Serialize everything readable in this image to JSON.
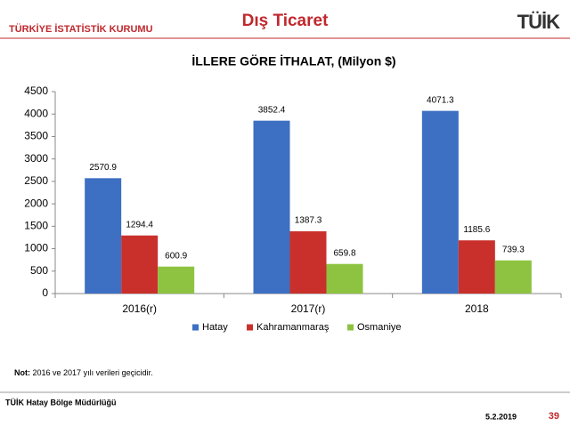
{
  "header": {
    "org": "TÜRKİYE İSTATİSTİK KURUMU",
    "section": "Dış Ticaret",
    "logo": "TÜİK"
  },
  "chart_data": {
    "type": "bar",
    "title": "İLLERE GÖRE İTHALAT, (Milyon $)",
    "categories": [
      "2016(r)",
      "2017(r)",
      "2018"
    ],
    "series": [
      {
        "name": "Hatay",
        "color": "#3d6fc2",
        "values": [
          2570.9,
          3852.4,
          4071.3
        ]
      },
      {
        "name": "Kahramanmaraş",
        "color": "#c9302c",
        "values": [
          1294.4,
          1387.3,
          1185.6
        ]
      },
      {
        "name": "Osmaniye",
        "color": "#8dc340",
        "values": [
          600.9,
          659.8,
          739.3
        ]
      }
    ],
    "ylim": [
      0,
      4500
    ],
    "yticks": [
      0,
      500,
      1000,
      1500,
      2000,
      2500,
      3000,
      3500,
      4000,
      4500
    ],
    "grid": false,
    "legend": "bottom"
  },
  "note": {
    "label": "Not:",
    "text": "2016 ve 2017 yılı verileri geçicidir."
  },
  "footer": {
    "office": "TÜİK Hatay Bölge Müdürlüğü",
    "date": "5.2.2019",
    "page": "39"
  }
}
